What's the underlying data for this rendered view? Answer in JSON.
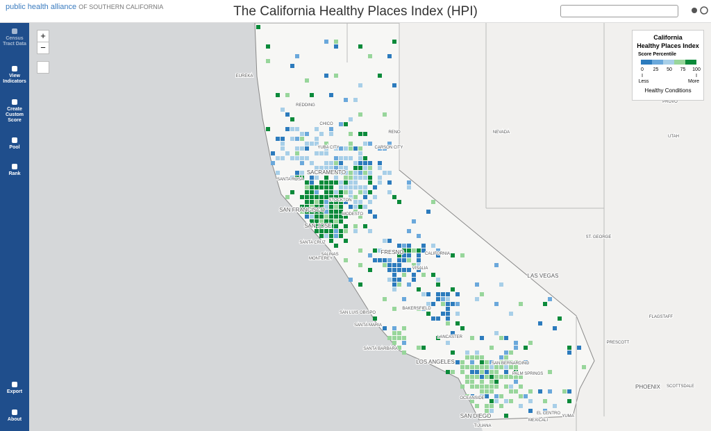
{
  "header": {
    "logo": "public health alliance",
    "logo_sub": "OF SOUTHERN CALIFORNIA",
    "title": "The California Healthy Places Index (HPI)"
  },
  "sidebar": [
    "Census Tract Data",
    "View Indicators",
    "Create Custom Score",
    "Pool",
    "Rank"
  ],
  "sidebar_bottom": [
    "Export",
    "About"
  ],
  "zoom": [
    "+",
    "−"
  ],
  "legend": {
    "title": "California",
    "subtitle": "Healthy Places Index",
    "heading": "Score Percentile",
    "ticks": [
      0,
      25,
      50,
      75,
      100
    ],
    "colors": [
      "#2c7bbd",
      "#6aa8db",
      "#a8cfe8",
      "#98d69b",
      "#0b8a3a"
    ],
    "low": "Less",
    "high": "More",
    "caption": "Healthy Conditions"
  },
  "map_labels": [
    "EUREKA",
    "REDDING",
    "CHICO",
    "RENO",
    "YUBA CITY",
    "CARSON CITY",
    "NEVADA",
    "UTAH",
    "PROVO",
    "SACRAMENTO",
    "SANTA ROSA",
    "SAN FRANCISCO",
    "STOCKTON",
    "MODESTO",
    "SAN JOSE",
    "SANTA CRUZ",
    "SALINAS",
    "MONTEREY",
    "FRESNO",
    "CALIFORNIA",
    "VISALIA",
    "ST. GEORGE",
    "LAS VEGAS",
    "BAKERSFIELD",
    "SAN LUIS OBISPO",
    "SANTA MARIA",
    "SANTA BARBARA",
    "LOS ANGELES",
    "LANCASTER",
    "SAN BERNARDINO",
    "PALM SPRINGS",
    "OCEANSIDE",
    "SAN DIEGO",
    "TIJUANA",
    "EL CENTRO",
    "MEXICALI",
    "YUMA",
    "PHOENIX",
    "SCOTTSDALE",
    "PRESCOTT",
    "FLAGSTAFF"
  ]
}
